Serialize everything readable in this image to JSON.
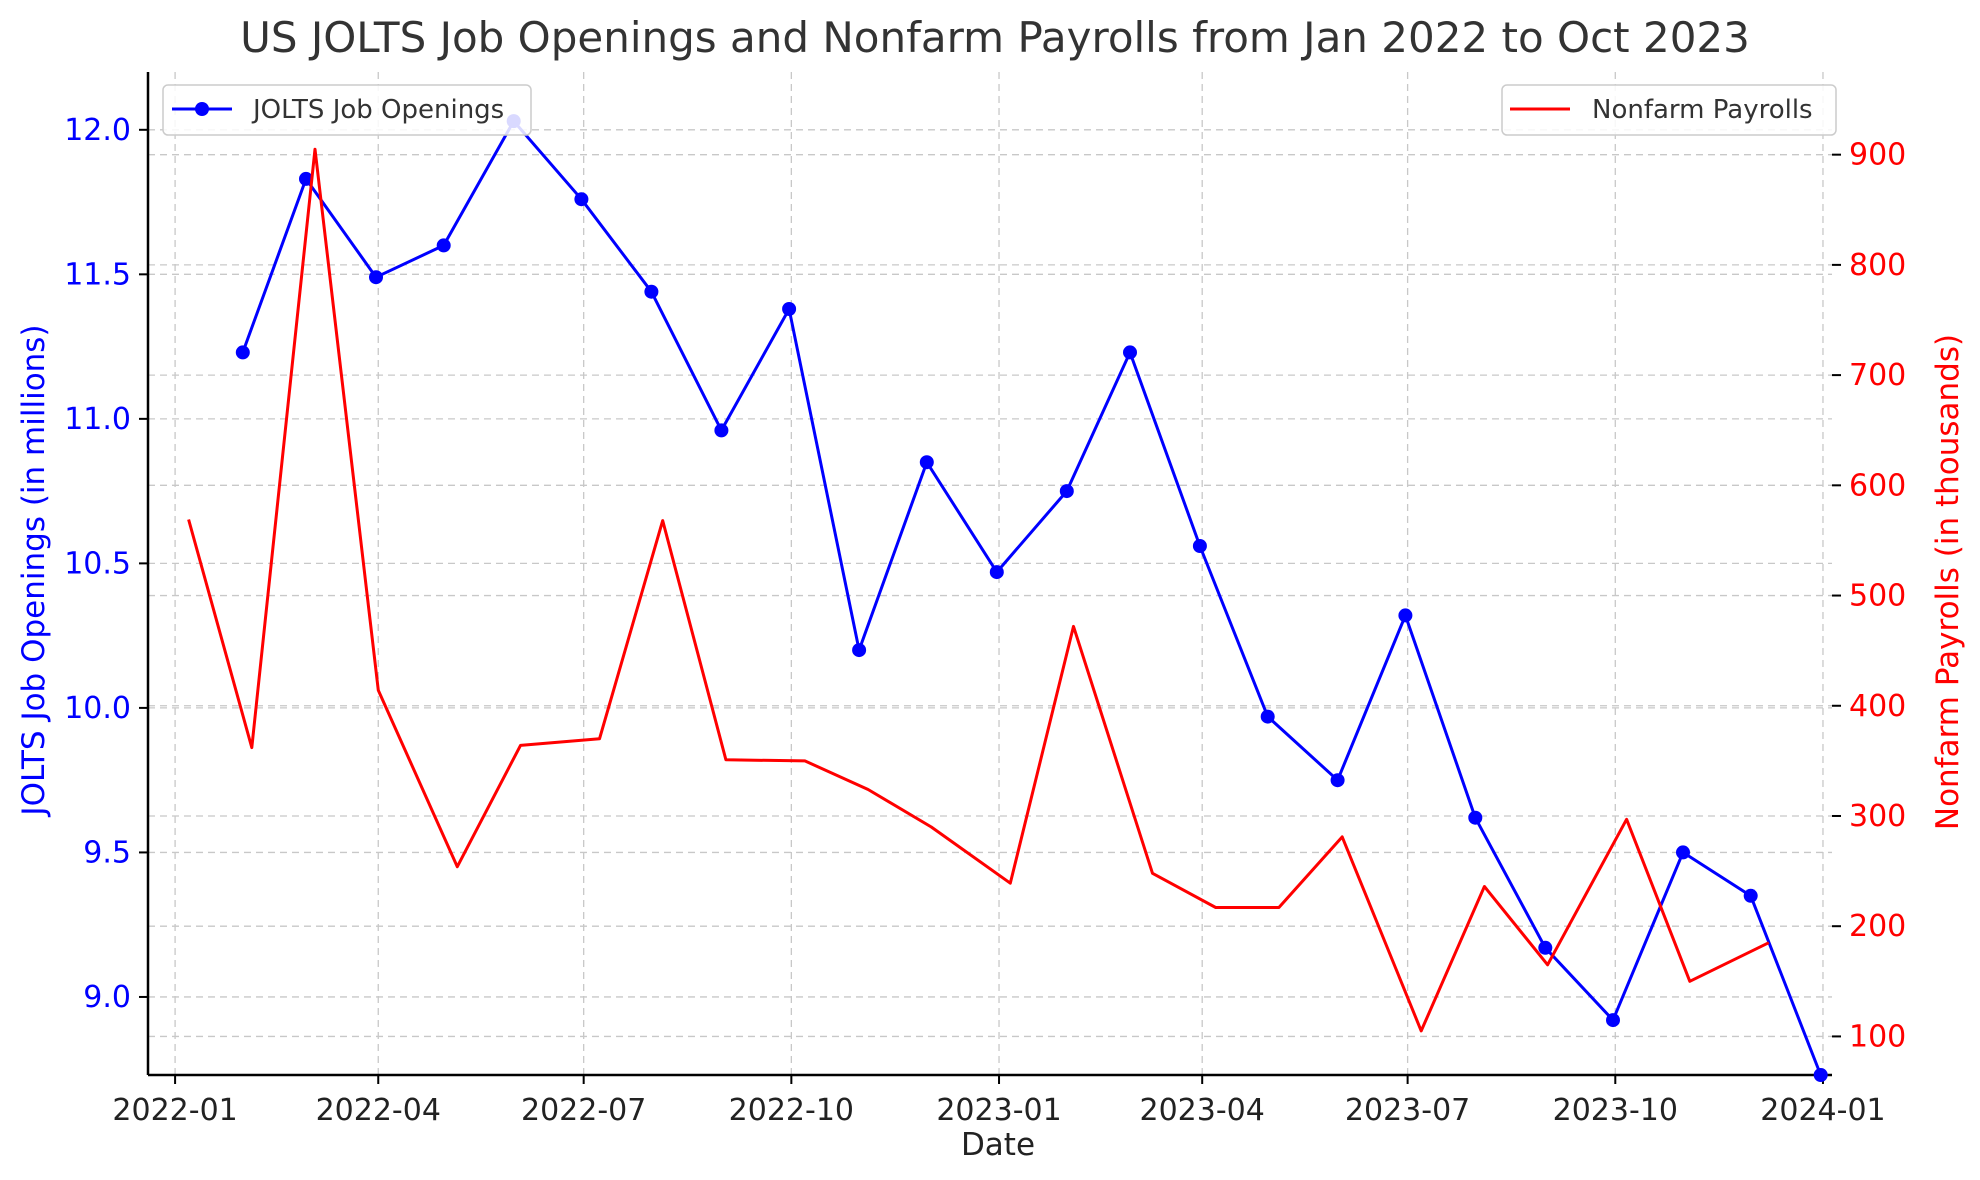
{
  "chart_data": {
    "type": "line",
    "title": "US JOLTS Job Openings and Nonfarm Payrolls from Jan 2022 to Oct 2023",
    "xlabel": "Date",
    "ylabel_left": "JOLTS Job Openings (in millions)",
    "ylabel_right": "Nonfarm Payrolls (in thousands)",
    "x_ticks": [
      "2022-01",
      "2022-04",
      "2022-07",
      "2022-10",
      "2023-01",
      "2023-04",
      "2023-07",
      "2023-10",
      "2024-01"
    ],
    "y_left_ticks": [
      "9.0",
      "9.5",
      "10.0",
      "10.5",
      "11.0",
      "11.5",
      "12.0"
    ],
    "y_right_ticks": [
      "100",
      "200",
      "300",
      "400",
      "500",
      "600",
      "700",
      "800",
      "900"
    ],
    "ylim_left": [
      8.73,
      12.2
    ],
    "ylim_right": [
      65,
      975
    ],
    "xlim": [
      "2021-12-20",
      "2024-01-05"
    ],
    "grid": true,
    "series": [
      {
        "name": "JOLTS Job Openings",
        "axis": "left",
        "color": "#0000ff",
        "marker": "circle",
        "x": [
          "2022-01-31",
          "2022-02-28",
          "2022-03-31",
          "2022-04-30",
          "2022-05-31",
          "2022-06-30",
          "2022-07-31",
          "2022-08-31",
          "2022-09-30",
          "2022-10-31",
          "2022-11-30",
          "2022-12-31",
          "2023-01-31",
          "2023-02-28",
          "2023-03-31",
          "2023-04-30",
          "2023-05-31",
          "2023-06-30",
          "2023-07-31",
          "2023-08-31",
          "2023-09-30",
          "2023-10-31",
          "2023-11-30",
          "2023-12-31"
        ],
        "values": [
          11.23,
          11.83,
          11.49,
          11.6,
          12.03,
          11.76,
          11.44,
          10.96,
          11.38,
          10.2,
          10.85,
          10.47,
          10.75,
          11.23,
          10.56,
          9.97,
          9.75,
          10.32,
          9.62,
          9.17,
          8.92,
          9.5,
          9.35,
          8.73
        ]
      },
      {
        "name": "Nonfarm Payrolls",
        "axis": "right",
        "color": "#ff0000",
        "marker": "none",
        "x": [
          "2022-01-07",
          "2022-02-04",
          "2022-03-04",
          "2022-04-01",
          "2022-05-06",
          "2022-06-03",
          "2022-07-08",
          "2022-08-05",
          "2022-09-02",
          "2022-10-07",
          "2022-11-04",
          "2022-12-02",
          "2023-01-06",
          "2023-02-03",
          "2023-03-10",
          "2023-04-07",
          "2023-05-05",
          "2023-06-02",
          "2023-07-07",
          "2023-08-04",
          "2023-09-01",
          "2023-10-06",
          "2023-11-03",
          "2023-12-08"
        ],
        "values": [
          569,
          362,
          905,
          414,
          254,
          364,
          370,
          568,
          351,
          350,
          324,
          290,
          239,
          472,
          248,
          217,
          217,
          281,
          105,
          236,
          165,
          297,
          150,
          185
        ]
      }
    ],
    "legend_left_position": "top-left",
    "legend_right_position": "top-right"
  }
}
